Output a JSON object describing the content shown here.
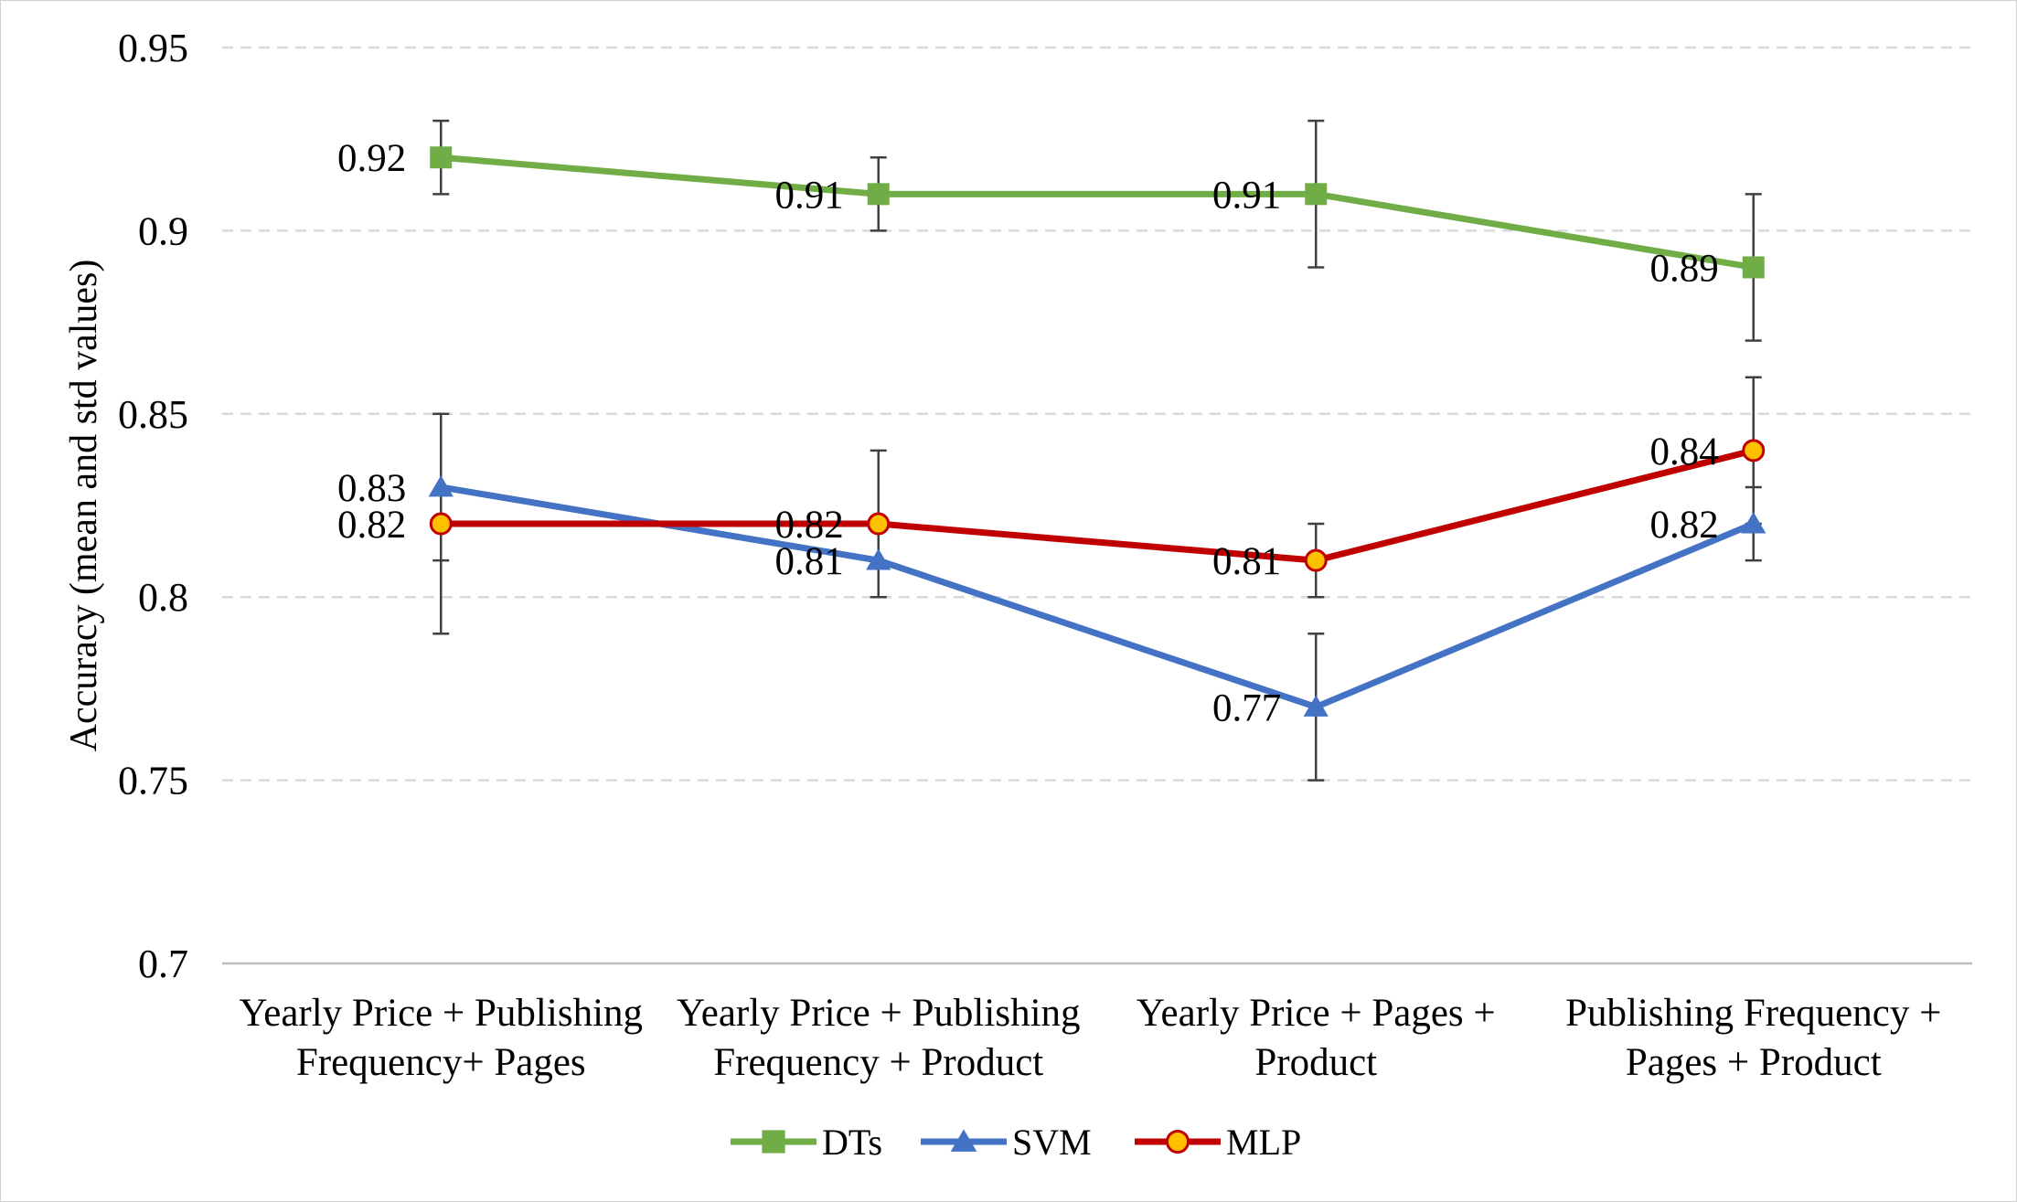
{
  "chart_data": {
    "type": "line",
    "title": "",
    "ylabel": "Accuracy (mean and std values)",
    "xlabel": "",
    "ylim": [
      0.7,
      0.95
    ],
    "yticks": [
      {
        "value": 0.7,
        "label": "0.7"
      },
      {
        "value": 0.75,
        "label": "0.75"
      },
      {
        "value": 0.8,
        "label": "0.8"
      },
      {
        "value": 0.85,
        "label": "0.85"
      },
      {
        "value": 0.9,
        "label": "0.9"
      },
      {
        "value": 0.95,
        "label": "0.95"
      }
    ],
    "grid": "horizontal dashed",
    "legend_position": "bottom",
    "categories": [
      [
        "Yearly Price + Publishing",
        "Frequency+ Pages"
      ],
      [
        "Yearly Price + Publishing",
        "Frequency + Product"
      ],
      [
        "Yearly Price + Pages +",
        "Product"
      ],
      [
        "Publishing Frequency +",
        "Pages + Product"
      ]
    ],
    "series": [
      {
        "name": "DTs",
        "color": "#70ad47",
        "marker": "square",
        "values": [
          0.92,
          0.91,
          0.91,
          0.89
        ],
        "errors": [
          0.01,
          0.01,
          0.02,
          0.02
        ],
        "data_labels": [
          "0.92",
          "0.91",
          "0.91",
          "0.89"
        ]
      },
      {
        "name": "SVM",
        "color": "#4472c4",
        "marker": "triangle",
        "values": [
          0.83,
          0.81,
          0.77,
          0.82
        ],
        "errors": [
          0.02,
          0.01,
          0.02,
          0.01
        ],
        "data_labels": [
          "0.83",
          "0.81",
          "0.77",
          "0.82"
        ]
      },
      {
        "name": "MLP",
        "color": "#c00000",
        "marker_fill": "#ffc000",
        "marker": "circle",
        "values": [
          0.82,
          0.82,
          0.81,
          0.84
        ],
        "errors": [
          0.03,
          0.02,
          0.01,
          0.02
        ],
        "data_labels": [
          "0.82",
          "0.82",
          "0.81",
          "0.84"
        ]
      }
    ]
  }
}
